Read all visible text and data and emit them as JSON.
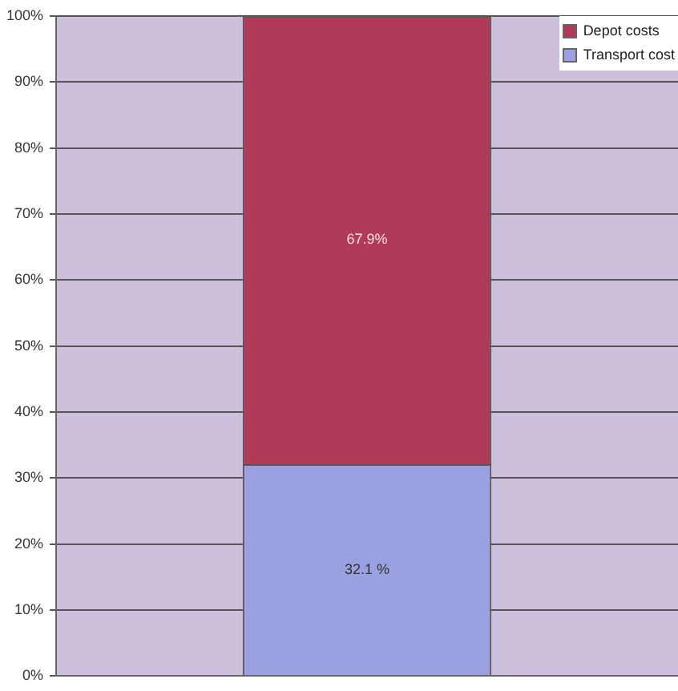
{
  "chart_data": {
    "type": "bar",
    "stacked": true,
    "categories": [
      null
    ],
    "series": [
      {
        "name": "Transport cost",
        "color": "#9aa0e0",
        "values": [
          32.1
        ],
        "value_labels": [
          "32.1 %"
        ]
      },
      {
        "name": "Depot costs",
        "color": "#b03a58",
        "values": [
          67.9
        ],
        "value_labels": [
          "67.9%"
        ]
      }
    ],
    "ylim": [
      0,
      100
    ],
    "yticks": [
      {
        "value": 0,
        "label": "0%"
      },
      {
        "value": 10,
        "label": "10%"
      },
      {
        "value": 20,
        "label": "20%"
      },
      {
        "value": 30,
        "label": "30%"
      },
      {
        "value": 40,
        "label": "40%"
      },
      {
        "value": 50,
        "label": "50%"
      },
      {
        "value": 60,
        "label": "60%"
      },
      {
        "value": 70,
        "label": "70%"
      },
      {
        "value": 80,
        "label": "80%"
      },
      {
        "value": 90,
        "label": "90%"
      },
      {
        "value": 100,
        "label": "100%"
      }
    ],
    "grid": "y",
    "legend": "top right"
  }
}
